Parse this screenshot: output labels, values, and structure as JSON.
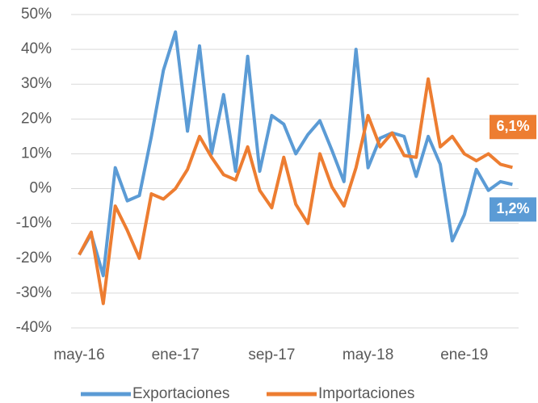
{
  "chart_data": {
    "type": "line",
    "categories": [
      "may-16",
      null,
      null,
      null,
      null,
      null,
      null,
      null,
      "ene-17",
      null,
      null,
      null,
      null,
      null,
      null,
      null,
      "sep-17",
      null,
      null,
      null,
      null,
      null,
      null,
      null,
      "may-18",
      null,
      null,
      null,
      null,
      null,
      null,
      null,
      "ene-19",
      null,
      null,
      null,
      null
    ],
    "series": [
      {
        "name": "Exportaciones",
        "color": "#5b9bd5",
        "values": [
          -19,
          -13,
          -25,
          6,
          -3.5,
          -2,
          15,
          34,
          45,
          16.5,
          41,
          10,
          27,
          5,
          38,
          5,
          21,
          18.5,
          10,
          15.5,
          19.5,
          11,
          2,
          40,
          6,
          14.5,
          16,
          15,
          3.5,
          15,
          7,
          -15,
          -7.5,
          5.5,
          -0.5,
          2,
          1.2
        ],
        "value_labels": [
          null,
          null,
          null,
          null,
          null,
          null,
          null,
          null,
          null,
          null,
          null,
          null,
          null,
          null,
          null,
          null,
          null,
          null,
          null,
          null,
          null,
          null,
          null,
          null,
          null,
          null,
          null,
          null,
          null,
          null,
          null,
          null,
          null,
          null,
          null,
          null,
          "1,2%"
        ]
      },
      {
        "name": "Importaciones",
        "color": "#ed7d31",
        "values": [
          -19,
          -12.5,
          -33,
          -5,
          -12,
          -20,
          -1.5,
          -3,
          0,
          5.5,
          15,
          9,
          4,
          2.5,
          12,
          -0.5,
          -5.5,
          9,
          -4.5,
          -10,
          10,
          0.5,
          -5,
          6,
          21,
          12,
          16,
          9.5,
          9,
          31.5,
          12,
          15,
          10,
          8,
          10,
          7,
          6.1
        ],
        "value_labels": [
          null,
          null,
          null,
          null,
          null,
          null,
          null,
          null,
          null,
          null,
          null,
          null,
          null,
          null,
          null,
          null,
          null,
          null,
          null,
          null,
          null,
          null,
          null,
          null,
          null,
          null,
          null,
          null,
          null,
          null,
          null,
          null,
          null,
          null,
          null,
          null,
          "6,1%"
        ]
      }
    ],
    "ylim": [
      -40,
      50
    ],
    "yticks": [
      {
        "value": -40,
        "label": "-40%"
      },
      {
        "value": -30,
        "label": "-30%"
      },
      {
        "value": -20,
        "label": "-20%"
      },
      {
        "value": -10,
        "label": "-10%"
      },
      {
        "value": 0,
        "label": "0%"
      },
      {
        "value": 10,
        "label": "10%"
      },
      {
        "value": 20,
        "label": "20%"
      },
      {
        "value": 30,
        "label": "30%"
      },
      {
        "value": 40,
        "label": "40%"
      },
      {
        "value": 50,
        "label": "50%"
      }
    ],
    "grid": true,
    "legend": "bottom"
  }
}
